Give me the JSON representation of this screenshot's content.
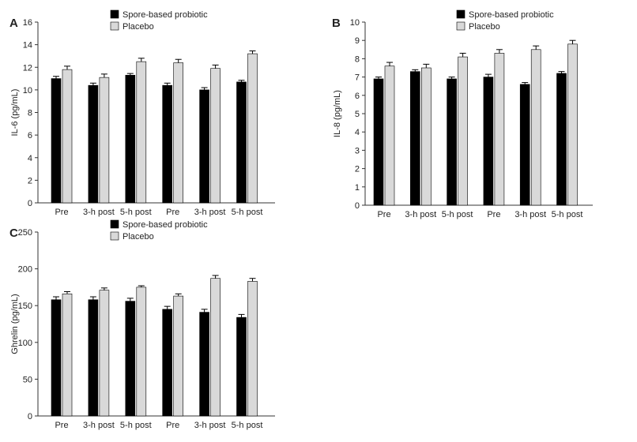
{
  "colors": {
    "probiotic": "#000000",
    "placebo": "#d9d9d9",
    "axis": "#333333"
  },
  "chart_data": [
    {
      "panel": "A",
      "type": "bar",
      "ylabel": "IL-6 (pg/mL)",
      "categories": [
        "Pre",
        "3-h post",
        "5-h post",
        "Pre",
        "3-h post",
        "5-h post"
      ],
      "ylim": [
        0,
        16
      ],
      "yticks": [
        0,
        2,
        4,
        6,
        8,
        10,
        12,
        14,
        16
      ],
      "legend": [
        "Spore-based probiotic",
        "Placebo"
      ],
      "legend_position": "top-center",
      "grid": false,
      "series": [
        {
          "name": "Spore-based probiotic",
          "values": [
            11.0,
            10.4,
            11.3,
            10.4,
            10.0,
            10.7
          ],
          "errors": [
            0.2,
            0.2,
            0.15,
            0.2,
            0.2,
            0.15
          ]
        },
        {
          "name": "Placebo",
          "values": [
            11.8,
            11.1,
            12.5,
            12.4,
            11.9,
            13.2
          ],
          "errors": [
            0.3,
            0.3,
            0.3,
            0.3,
            0.3,
            0.25
          ]
        }
      ]
    },
    {
      "panel": "B",
      "type": "bar",
      "ylabel": "IL-8 (pg/mL)",
      "categories": [
        "Pre",
        "3-h post",
        "5-h post",
        "Pre",
        "3-h post",
        "5-h post"
      ],
      "ylim": [
        0,
        10
      ],
      "yticks": [
        0,
        1,
        2,
        3,
        4,
        5,
        6,
        7,
        8,
        9,
        10
      ],
      "legend": [
        "Spore-based probiotic",
        "Placebo"
      ],
      "legend_position": "top-center",
      "grid": false,
      "series": [
        {
          "name": "Spore-based probiotic",
          "values": [
            6.9,
            7.3,
            6.9,
            7.0,
            6.6,
            7.2
          ],
          "errors": [
            0.1,
            0.1,
            0.1,
            0.15,
            0.1,
            0.1
          ]
        },
        {
          "name": "Placebo",
          "values": [
            7.6,
            7.5,
            8.1,
            8.3,
            8.5,
            8.8
          ],
          "errors": [
            0.2,
            0.2,
            0.2,
            0.2,
            0.2,
            0.2
          ]
        }
      ]
    },
    {
      "panel": "C",
      "type": "bar",
      "ylabel": "Ghrelin (pg/mL)",
      "categories": [
        "Pre",
        "3-h post",
        "5-h post",
        "Pre",
        "3-h post",
        "5-h post"
      ],
      "ylim": [
        0,
        250
      ],
      "yticks": [
        0,
        50,
        100,
        150,
        200,
        250
      ],
      "legend": [
        "Spore-based probiotic",
        "Placebo"
      ],
      "legend_position": "top-center",
      "grid": false,
      "series": [
        {
          "name": "Spore-based probiotic",
          "values": [
            158,
            158,
            156,
            145,
            141,
            134
          ],
          "errors": [
            4,
            4,
            4,
            4,
            4,
            4
          ]
        },
        {
          "name": "Placebo",
          "values": [
            166,
            171,
            175,
            163,
            187,
            183
          ],
          "errors": [
            3,
            3,
            2,
            3,
            4,
            4
          ]
        }
      ]
    }
  ]
}
